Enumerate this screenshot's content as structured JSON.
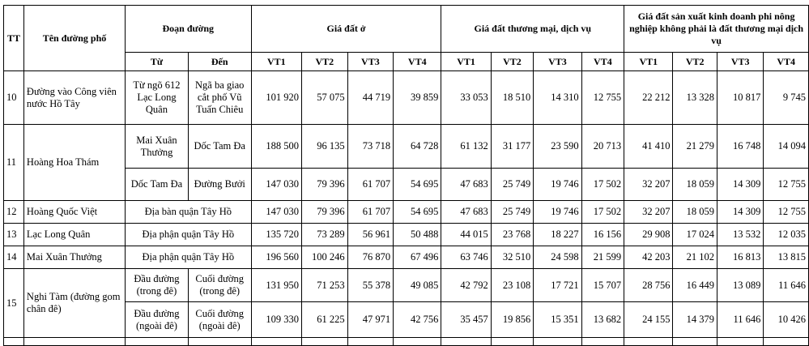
{
  "headers": {
    "tt": "TT",
    "street": "Tên đường phố",
    "segment": "Đoạn đường",
    "from": "Từ",
    "to": "Đến",
    "group_residential": "Giá đất ở",
    "group_commercial": "Giá đất thương mại, dịch vụ",
    "group_production": "Giá đất sản xuất kinh doanh phi nông nghiệp không phải là đất thương mại dịch vụ",
    "vt": [
      "VT1",
      "VT2",
      "VT3",
      "VT4",
      "VT1",
      "VT2",
      "VT3",
      "VT4",
      "VT1",
      "VT2",
      "VT3",
      "VT4"
    ]
  },
  "rows": [
    {
      "tt": "10",
      "street": "Đường vào Công viên nước Hồ Tây",
      "segments": [
        {
          "from": "Từ ngõ 612 Lạc Long Quân",
          "to": "Ngã ba giao cắt phố Vũ Tuấn Chiêu",
          "prices": [
            "101 920",
            "57 075",
            "44 719",
            "39 859",
            "33 053",
            "18 510",
            "14 310",
            "12 755",
            "22 212",
            "13 328",
            "10 817",
            "9 745"
          ]
        }
      ]
    },
    {
      "tt": "11",
      "street": "Hoàng Hoa Thám",
      "segments": [
        {
          "from": "Mai Xuân Thưởng",
          "to": "Dốc Tam Đa",
          "prices": [
            "188 500",
            "96 135",
            "73 718",
            "64 728",
            "61 132",
            "31 177",
            "23 590",
            "20 713",
            "41 410",
            "21 279",
            "16 748",
            "14 094"
          ]
        },
        {
          "from": "Dốc Tam Đa",
          "to": "Đường Bưởi",
          "prices": [
            "147 030",
            "79 396",
            "61 707",
            "54 695",
            "47 683",
            "25 749",
            "19 746",
            "17 502",
            "32 207",
            "18 059",
            "14 309",
            "12 755"
          ]
        }
      ]
    },
    {
      "tt": "12",
      "street": "Hoàng Quốc Việt",
      "area": "Địa bàn quận Tây Hồ",
      "prices": [
        "147 030",
        "79 396",
        "61 707",
        "54 695",
        "47 683",
        "25 749",
        "19 746",
        "17 502",
        "32 207",
        "18 059",
        "14 309",
        "12 755"
      ]
    },
    {
      "tt": "13",
      "street": "Lạc Long Quân",
      "area": "Địa phận quận Tây Hồ",
      "prices": [
        "135 720",
        "73 289",
        "56 961",
        "50 488",
        "44 015",
        "23 768",
        "18 227",
        "16 156",
        "29 908",
        "17 024",
        "13 532",
        "12 035"
      ]
    },
    {
      "tt": "14",
      "street": "Mai Xuân Thưởng",
      "area": "Địa phận quận Tây Hồ",
      "prices": [
        "196 560",
        "100 246",
        "76 870",
        "67 496",
        "63 746",
        "32 510",
        "24 598",
        "21 599",
        "42 203",
        "21 102",
        "16 813",
        "13 815"
      ]
    },
    {
      "tt": "15",
      "street": "Nghi Tàm (đường gom chân đê)",
      "segments": [
        {
          "from": "Đầu đường (trong đê)",
          "to": "Cuối đường (trong đê)",
          "prices": [
            "131 950",
            "71 253",
            "55 378",
            "49 085",
            "42 792",
            "23 108",
            "17 721",
            "15 707",
            "28 756",
            "16 449",
            "13 089",
            "11 646"
          ]
        },
        {
          "from": "Đầu đường (ngoài đê)",
          "to": "Cuối đường (ngoài đê)",
          "prices": [
            "109 330",
            "61 225",
            "47 971",
            "42 756",
            "35 457",
            "19 856",
            "15 351",
            "13 682",
            "24 155",
            "14 379",
            "11 646",
            "10 426"
          ]
        }
      ]
    }
  ]
}
